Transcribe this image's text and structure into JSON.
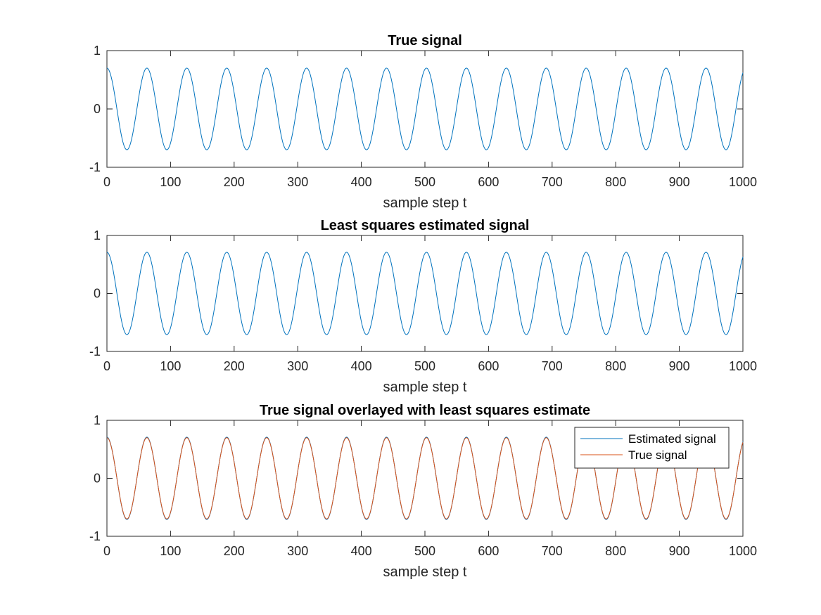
{
  "chart_data": [
    {
      "type": "line",
      "title": "True signal",
      "xlabel": "sample step t",
      "ylabel": "",
      "xlim": [
        0,
        1000
      ],
      "ylim": [
        -1,
        1
      ],
      "xticks": [
        0,
        100,
        200,
        300,
        400,
        500,
        600,
        700,
        800,
        900,
        1000
      ],
      "yticks": [
        -1,
        0,
        1
      ],
      "grid": false,
      "series": [
        {
          "color": "#0072BD",
          "amplitude": 0.7,
          "period": 62.8,
          "phase_deg": 90,
          "x_start": 0,
          "x_end": 1000
        }
      ]
    },
    {
      "type": "line",
      "title": "Least squares estimated signal",
      "xlabel": "sample step t",
      "ylabel": "",
      "xlim": [
        0,
        1000
      ],
      "ylim": [
        -1,
        1
      ],
      "xticks": [
        0,
        100,
        200,
        300,
        400,
        500,
        600,
        700,
        800,
        900,
        1000
      ],
      "yticks": [
        -1,
        0,
        1
      ],
      "grid": false,
      "series": [
        {
          "color": "#0072BD",
          "amplitude": 0.71,
          "period": 62.8,
          "phase_deg": 90,
          "x_start": 0,
          "x_end": 1000
        }
      ]
    },
    {
      "type": "line",
      "title": "True signal overlayed with least squares estimate",
      "xlabel": "sample step t",
      "ylabel": "",
      "xlim": [
        0,
        1000
      ],
      "ylim": [
        -1,
        1
      ],
      "xticks": [
        0,
        100,
        200,
        300,
        400,
        500,
        600,
        700,
        800,
        900,
        1000
      ],
      "yticks": [
        -1,
        0,
        1
      ],
      "grid": false,
      "legend": "top-right",
      "series": [
        {
          "name": "Estimated signal",
          "color": "#0072BD",
          "amplitude": 0.71,
          "period": 62.8,
          "phase_deg": 90,
          "x_start": 0,
          "x_end": 1000
        },
        {
          "name": "True signal",
          "color": "#D95319",
          "amplitude": 0.7,
          "period": 62.8,
          "phase_deg": 90,
          "x_start": 0,
          "x_end": 1000
        }
      ]
    }
  ]
}
